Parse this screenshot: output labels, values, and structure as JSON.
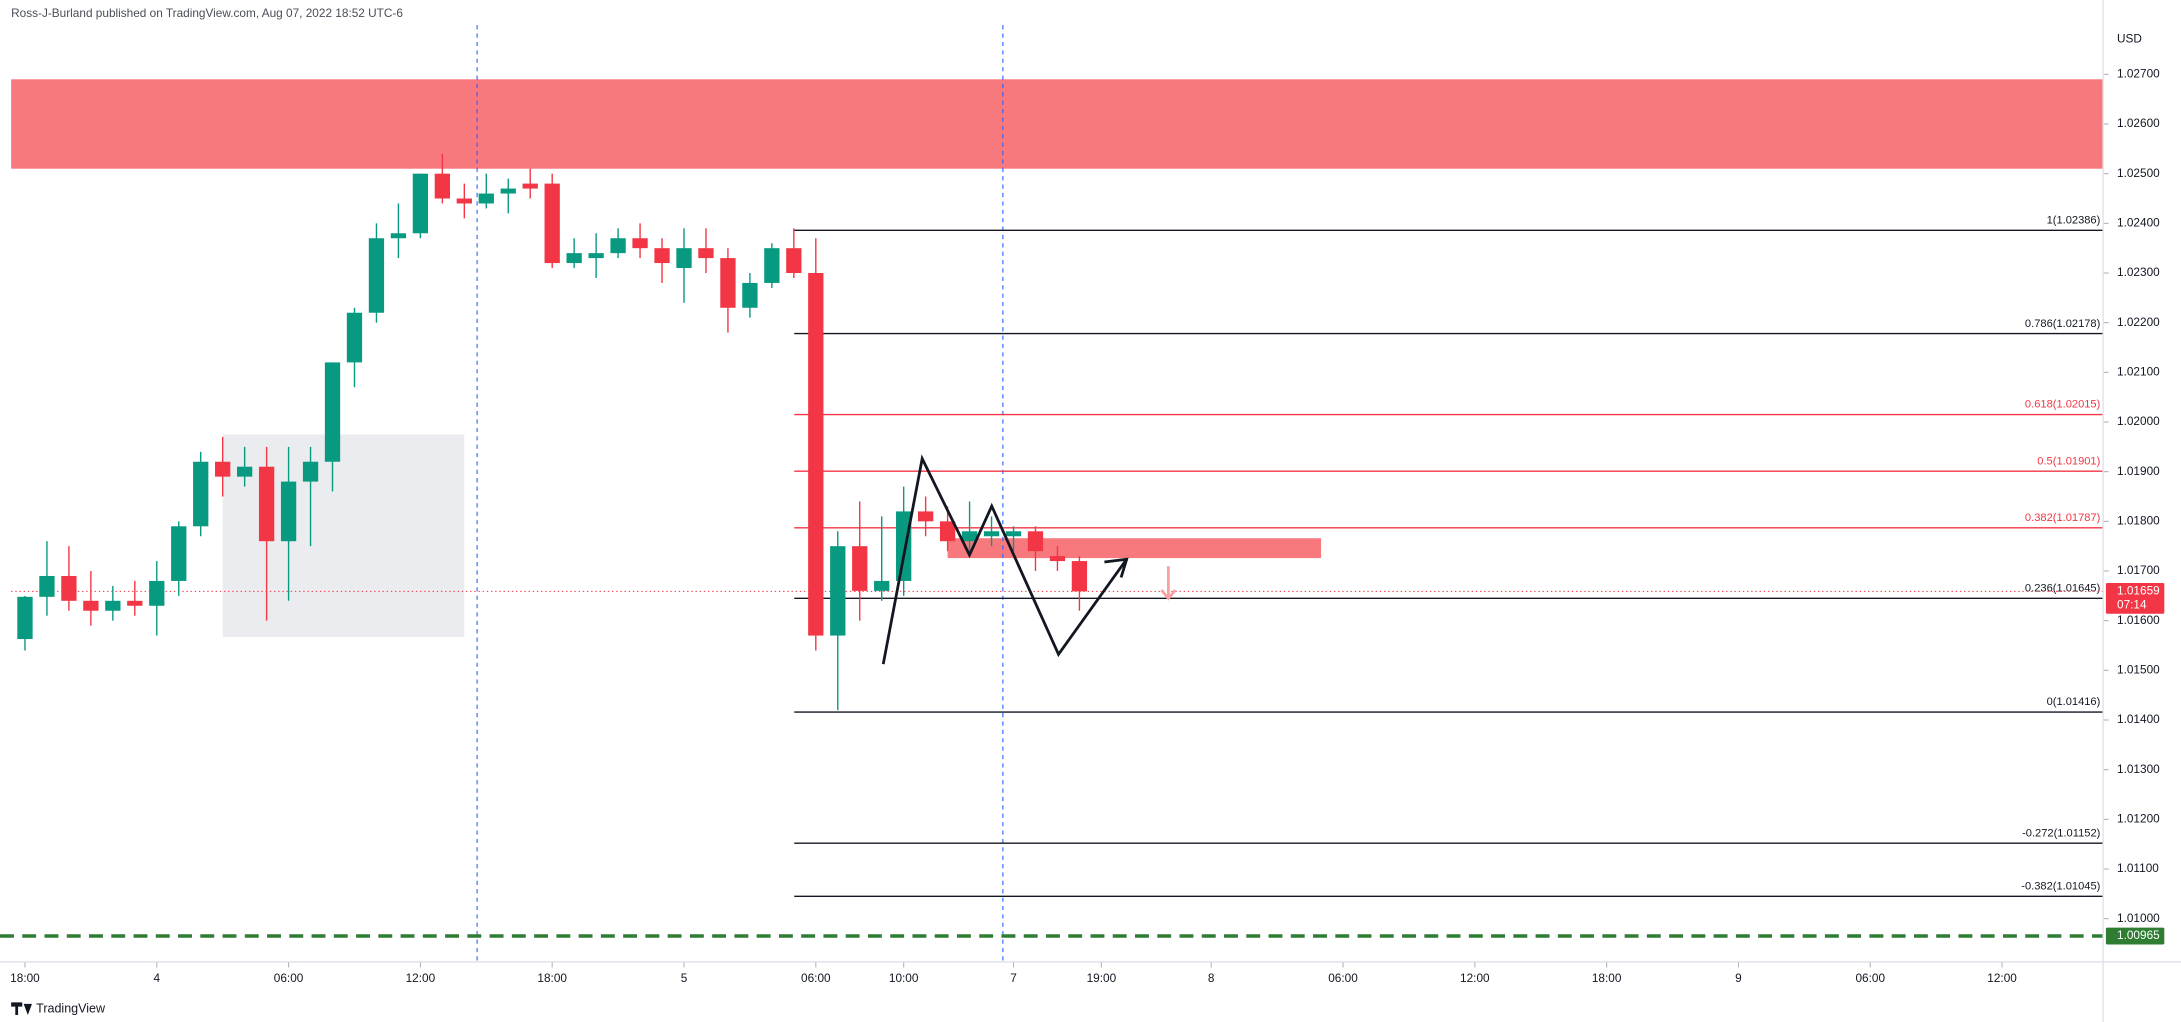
{
  "chart_data": {
    "type": "candlestick",
    "title": "Ross-J-Burland published on TradingView.com, Aug 07, 2022 18:52 UTC-6",
    "brand": "TradingView",
    "currency": "USD",
    "up_color": "#089981",
    "down_color": "#f23645",
    "x": [
      0,
      1,
      2,
      3,
      4,
      5,
      6,
      7,
      8,
      9,
      10,
      11,
      12,
      13,
      14,
      15,
      16,
      17,
      18,
      19,
      20,
      21,
      22,
      23,
      24,
      25,
      26,
      27,
      28,
      29,
      30,
      31,
      32,
      33,
      34,
      35,
      36,
      37,
      38,
      39,
      40,
      41,
      42,
      43,
      44,
      45,
      46,
      47,
      48
    ],
    "open": [
      1.01563,
      1.01648,
      1.0169,
      1.0164,
      1.0162,
      1.0164,
      1.0163,
      1.0168,
      1.0179,
      1.0192,
      1.0189,
      1.0191,
      1.0176,
      1.0188,
      1.0192,
      1.0212,
      1.0222,
      1.0237,
      1.0238,
      1.025,
      1.0245,
      1.0244,
      1.0246,
      1.0248,
      1.0248,
      1.0232,
      1.0233,
      1.0234,
      1.0237,
      1.0235,
      1.0231,
      1.0235,
      1.0233,
      1.0223,
      1.0228,
      1.0235,
      1.023,
      1.0157,
      1.0175,
      1.0166,
      1.0168,
      1.0182,
      1.018,
      1.0176,
      1.0177,
      1.0177,
      1.0178,
      1.0173,
      1.0172
    ],
    "high": [
      1.0165,
      1.0176,
      1.0175,
      1.017,
      1.0167,
      1.0168,
      1.0172,
      1.018,
      1.0194,
      1.0197,
      1.0195,
      1.0195,
      1.0195,
      1.0195,
      1.0212,
      1.0223,
      1.024,
      1.0244,
      1.025,
      1.0254,
      1.0248,
      1.025,
      1.0249,
      1.0251,
      1.025,
      1.0237,
      1.0238,
      1.0239,
      1.024,
      1.0237,
      1.0239,
      1.0239,
      1.0235,
      1.023,
      1.0236,
      1.0239,
      1.0237,
      1.0178,
      1.0184,
      1.0181,
      1.0187,
      1.0185,
      1.0183,
      1.0184,
      1.0181,
      1.0179,
      1.0179,
      1.0175,
      1.0173
    ],
    "low": [
      1.0154,
      1.0161,
      1.0162,
      1.0159,
      1.016,
      1.0161,
      1.0157,
      1.0165,
      1.0177,
      1.0185,
      1.0187,
      1.016,
      1.0164,
      1.0175,
      1.0186,
      1.0207,
      1.022,
      1.0233,
      1.0237,
      1.0244,
      1.0241,
      1.0243,
      1.0242,
      1.0245,
      1.0231,
      1.0231,
      1.0229,
      1.0233,
      1.0233,
      1.0228,
      1.0224,
      1.023,
      1.0218,
      1.0221,
      1.0227,
      1.0229,
      1.0154,
      1.0142,
      1.016,
      1.0164,
      1.0165,
      1.0177,
      1.0174,
      1.0174,
      1.0175,
      1.0174,
      1.017,
      1.017,
      1.0162
    ],
    "close": [
      1.01648,
      1.0169,
      1.0164,
      1.0162,
      1.0164,
      1.0163,
      1.0168,
      1.0179,
      1.0192,
      1.0189,
      1.0191,
      1.0176,
      1.0188,
      1.0192,
      1.0212,
      1.0222,
      1.0237,
      1.0238,
      1.025,
      1.0245,
      1.0244,
      1.0246,
      1.0247,
      1.0247,
      1.0232,
      1.0234,
      1.0234,
      1.0237,
      1.0235,
      1.0232,
      1.0235,
      1.0233,
      1.0223,
      1.0228,
      1.0235,
      1.023,
      1.0157,
      1.0175,
      1.0166,
      1.0168,
      1.0182,
      1.018,
      1.0176,
      1.0178,
      1.0178,
      1.0178,
      1.0174,
      1.0172,
      1.01659
    ],
    "xlim": [
      -0.63,
      94.6
    ],
    "xticks": [
      {
        "value": 0,
        "label": "18:00"
      },
      {
        "value": 6,
        "label": "4"
      },
      {
        "value": 12,
        "label": "06:00"
      },
      {
        "value": 18,
        "label": "12:00"
      },
      {
        "value": 24,
        "label": "18:00"
      },
      {
        "value": 30,
        "label": "5"
      },
      {
        "value": 36,
        "label": "06:00"
      },
      {
        "value": 40,
        "label": "10:00"
      },
      {
        "value": 45,
        "label": "7"
      },
      {
        "value": 49,
        "label": "19:00"
      },
      {
        "value": 54,
        "label": "8"
      },
      {
        "value": 60,
        "label": "06:00"
      },
      {
        "value": 66,
        "label": "12:00"
      },
      {
        "value": 72,
        "label": "18:00"
      },
      {
        "value": 78,
        "label": "9"
      },
      {
        "value": 84,
        "label": "06:00"
      },
      {
        "value": 90,
        "label": "12:00"
      }
    ],
    "ylim": [
      1.00913,
      1.02799
    ],
    "yticks": [
      {
        "value": 1.01,
        "label": "1.01000"
      },
      {
        "value": 1.011,
        "label": "1.01100"
      },
      {
        "value": 1.012,
        "label": "1.01200"
      },
      {
        "value": 1.013,
        "label": "1.01300"
      },
      {
        "value": 1.014,
        "label": "1.01400"
      },
      {
        "value": 1.015,
        "label": "1.01500"
      },
      {
        "value": 1.016,
        "label": "1.01600"
      },
      {
        "value": 1.017,
        "label": "1.01700"
      },
      {
        "value": 1.018,
        "label": "1.01800"
      },
      {
        "value": 1.019,
        "label": "1.01900"
      },
      {
        "value": 1.02,
        "label": "1.02000"
      },
      {
        "value": 1.021,
        "label": "1.02100"
      },
      {
        "value": 1.022,
        "label": "1.02200"
      },
      {
        "value": 1.023,
        "label": "1.02300"
      },
      {
        "value": 1.024,
        "label": "1.02400"
      },
      {
        "value": 1.025,
        "label": "1.02500"
      },
      {
        "value": 1.026,
        "label": "1.02600"
      },
      {
        "value": 1.027,
        "label": "1.02700"
      }
    ],
    "grid": false,
    "last_price": 1.01659,
    "countdown": "07:14",
    "support_line": {
      "value": 1.00965,
      "color": "#2e7d32"
    },
    "fib_levels": [
      {
        "price": 1.02386,
        "label": "1(1.02386)",
        "color": "#131722"
      },
      {
        "price": 1.02178,
        "label": "0.786(1.02178)",
        "color": "#131722"
      },
      {
        "price": 1.02015,
        "label": "0.618(1.02015)",
        "color": "#f23645"
      },
      {
        "price": 1.01901,
        "label": "0.5(1.01901)",
        "color": "#f23645"
      },
      {
        "price": 1.01787,
        "label": "0.382(1.01787)",
        "color": "#f23645"
      },
      {
        "price": 1.01645,
        "label": "0.236(1.01645)",
        "color": "#131722"
      },
      {
        "price": 1.01416,
        "label": "0(1.01416)",
        "color": "#131722"
      },
      {
        "price": 1.01152,
        "label": "-0.272(1.01152)",
        "color": "#131722"
      },
      {
        "price": 1.01045,
        "label": "-0.382(1.01045)",
        "color": "#131722"
      }
    ],
    "zones": [
      {
        "y": [
          1.0251,
          1.0269
        ],
        "color": "#f7787d"
      },
      {
        "x": [
          9,
          20
        ],
        "y": [
          1.01567,
          1.01975
        ],
        "color": "#e3e4e8"
      },
      {
        "x": [
          42,
          59
        ],
        "y": [
          1.01726,
          1.01766
        ],
        "color": "#f7787d"
      }
    ]
  }
}
